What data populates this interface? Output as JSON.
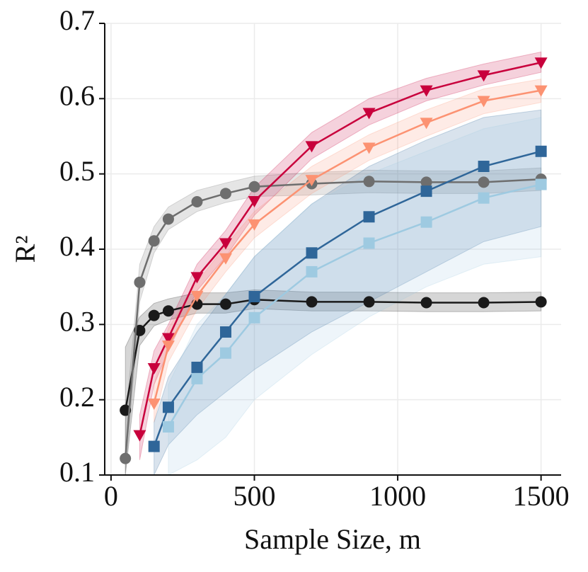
{
  "chart_data": {
    "type": "line",
    "xlabel": "Sample Size, m",
    "ylabel": "R²",
    "x": [
      50,
      100,
      150,
      200,
      300,
      400,
      500,
      700,
      900,
      1100,
      1300,
      1500
    ],
    "xlim": [
      -22,
      1570
    ],
    "xticks": [
      0,
      500,
      1000,
      1500
    ],
    "ylim": [
      0.1,
      0.7
    ],
    "yticks": [
      0.1,
      0.2,
      0.3,
      0.4,
      0.5,
      0.6,
      0.7
    ],
    "grid": true,
    "series": [
      {
        "color": "#1a1a1a",
        "marker": "circle",
        "values": [
          0.186,
          0.292,
          0.312,
          0.318,
          0.327,
          0.327,
          0.333,
          0.33,
          0.33,
          0.329,
          0.329,
          0.33
        ],
        "lower": [
          0.1,
          0.272,
          0.298,
          0.306,
          0.315,
          0.315,
          0.321,
          0.318,
          0.318,
          0.317,
          0.317,
          0.318
        ],
        "upper": [
          0.27,
          0.31,
          0.328,
          0.334,
          0.342,
          0.342,
          0.346,
          0.343,
          0.343,
          0.342,
          0.342,
          0.343
        ]
      },
      {
        "color": "#6e6e6e",
        "marker": "circle",
        "values": [
          0.122,
          0.356,
          0.411,
          0.44,
          0.463,
          0.474,
          0.483,
          0.487,
          0.49,
          0.489,
          0.489,
          0.493
        ],
        "lower": [
          0.1,
          0.33,
          0.395,
          0.426,
          0.45,
          0.462,
          0.47,
          0.472,
          0.475,
          0.474,
          0.474,
          0.478
        ],
        "upper": [
          0.17,
          0.38,
          0.43,
          0.456,
          0.478,
          0.488,
          0.497,
          0.502,
          0.505,
          0.504,
          0.504,
          0.508
        ]
      },
      {
        "color": "#c8003c",
        "marker": "triangle",
        "values": [
          null,
          0.153,
          0.242,
          0.282,
          0.363,
          0.408,
          0.464,
          0.537,
          0.581,
          0.611,
          0.631,
          0.648
        ],
        "lower": [
          null,
          0.12,
          0.22,
          0.265,
          0.345,
          0.39,
          0.445,
          0.52,
          0.565,
          0.597,
          0.618,
          0.635
        ],
        "upper": [
          null,
          0.18,
          0.265,
          0.3,
          0.38,
          0.425,
          0.482,
          0.555,
          0.6,
          0.627,
          0.646,
          0.662
        ]
      },
      {
        "color": "#fc9272",
        "marker": "triangle",
        "values": [
          null,
          null,
          0.195,
          0.272,
          0.338,
          0.388,
          0.433,
          0.492,
          0.535,
          0.568,
          0.597,
          0.611
        ],
        "lower": [
          null,
          null,
          0.17,
          0.25,
          0.32,
          0.37,
          0.415,
          0.474,
          0.518,
          0.55,
          0.58,
          0.595
        ],
        "upper": [
          null,
          null,
          0.22,
          0.295,
          0.356,
          0.405,
          0.45,
          0.51,
          0.552,
          0.585,
          0.613,
          0.626
        ]
      },
      {
        "color": "#2f6699",
        "marker": "square",
        "values": [
          null,
          null,
          0.138,
          0.19,
          0.243,
          0.29,
          0.337,
          0.395,
          0.443,
          0.477,
          0.51,
          0.53
        ],
        "lower": [
          null,
          null,
          0.1,
          0.14,
          0.18,
          0.21,
          0.24,
          0.29,
          0.33,
          0.37,
          0.41,
          0.43
        ],
        "upper": [
          null,
          null,
          0.17,
          0.23,
          0.29,
          0.34,
          0.39,
          0.46,
          0.51,
          0.545,
          0.575,
          0.585
        ]
      },
      {
        "color": "#9ecae1",
        "marker": "square",
        "values": [
          null,
          null,
          null,
          0.164,
          0.228,
          0.262,
          0.309,
          0.37,
          0.408,
          0.436,
          0.468,
          0.486
        ],
        "lower": [
          null,
          null,
          null,
          0.1,
          0.12,
          0.15,
          0.2,
          0.26,
          0.31,
          0.35,
          0.38,
          0.39
        ],
        "upper": [
          null,
          null,
          null,
          0.22,
          0.3,
          0.34,
          0.39,
          0.46,
          0.5,
          0.53,
          0.56,
          0.575
        ]
      }
    ]
  }
}
